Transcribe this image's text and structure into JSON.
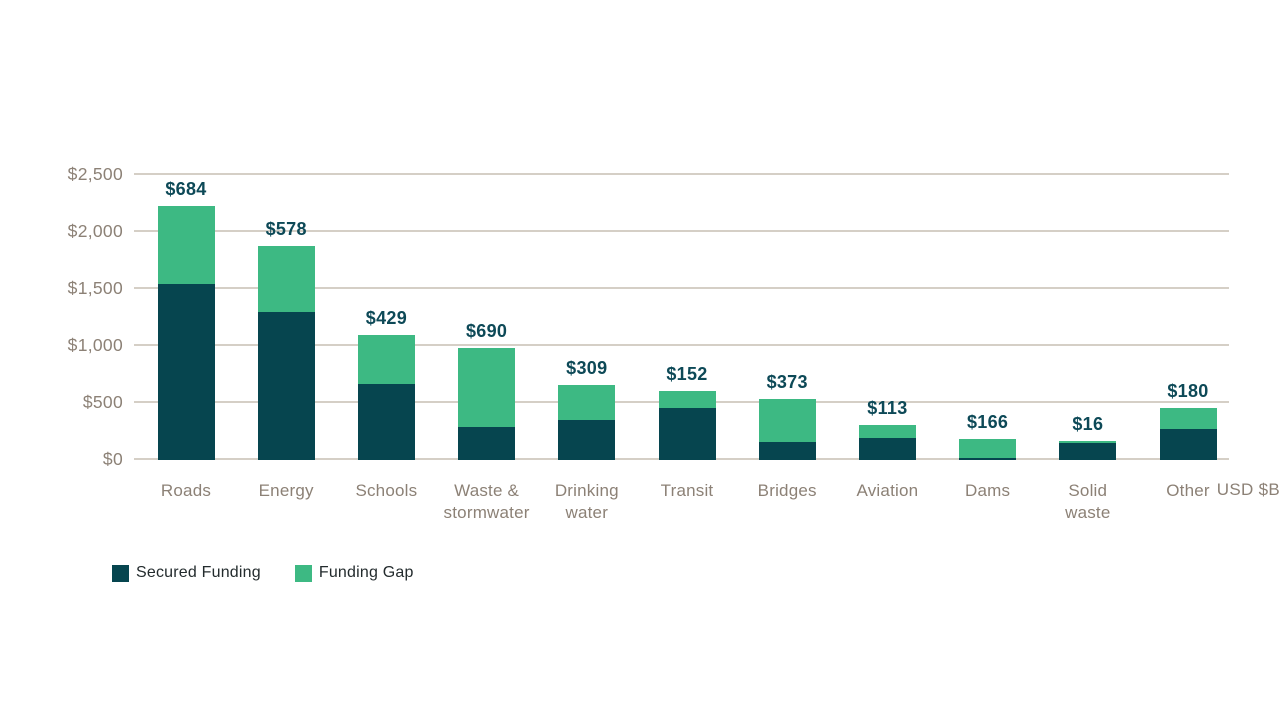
{
  "chart_data": {
    "type": "bar",
    "stacked": true,
    "title": "",
    "xlabel": "",
    "ylabel": "USD $B",
    "ylim": [
      0,
      2500
    ],
    "gridline_step": 500,
    "grid": true,
    "legend_position": "bottom-left",
    "y_tick_labels": [
      "$2,500",
      "$2,000",
      "$1,500",
      "$1,000",
      "$500",
      "$0"
    ],
    "axis_unit_label": "USD $B",
    "categories": [
      "Roads",
      "Energy",
      "Schools",
      "Waste &\nstormwater",
      "Drinking\nwater",
      "Transit",
      "Bridges",
      "Aviation",
      "Dams",
      "Solid\nwaste",
      "Other"
    ],
    "series": [
      {
        "name": "Secured Funding",
        "color": "#06454f",
        "note": "values estimated from gridlines",
        "values": [
          1545,
          1300,
          670,
          290,
          355,
          460,
          160,
          195,
          20,
          150,
          270
        ]
      },
      {
        "name": "Funding Gap",
        "color": "#3db983",
        "values": [
          684,
          578,
          429,
          690,
          309,
          152,
          373,
          113,
          166,
          16,
          180
        ]
      }
    ],
    "bar_labels": [
      "$684",
      "$578",
      "$429",
      "$690",
      "$309",
      "$152",
      "$373",
      "$113",
      "$166",
      "$16",
      "$180"
    ],
    "bar_labels_meaning": "Funding Gap value shown above each bar"
  },
  "colors": {
    "secured": "#06454f",
    "gap": "#3db983",
    "value_label_text": "#0d4957",
    "axis_text": "#8c8176",
    "legend_text": "#232b2d",
    "gridline": "#d5cfc6",
    "background": "#ffffff"
  },
  "legend": {
    "items": [
      {
        "label": "Secured Funding",
        "color": "#06454f"
      },
      {
        "label": "Funding Gap",
        "color": "#3db983"
      }
    ]
  }
}
